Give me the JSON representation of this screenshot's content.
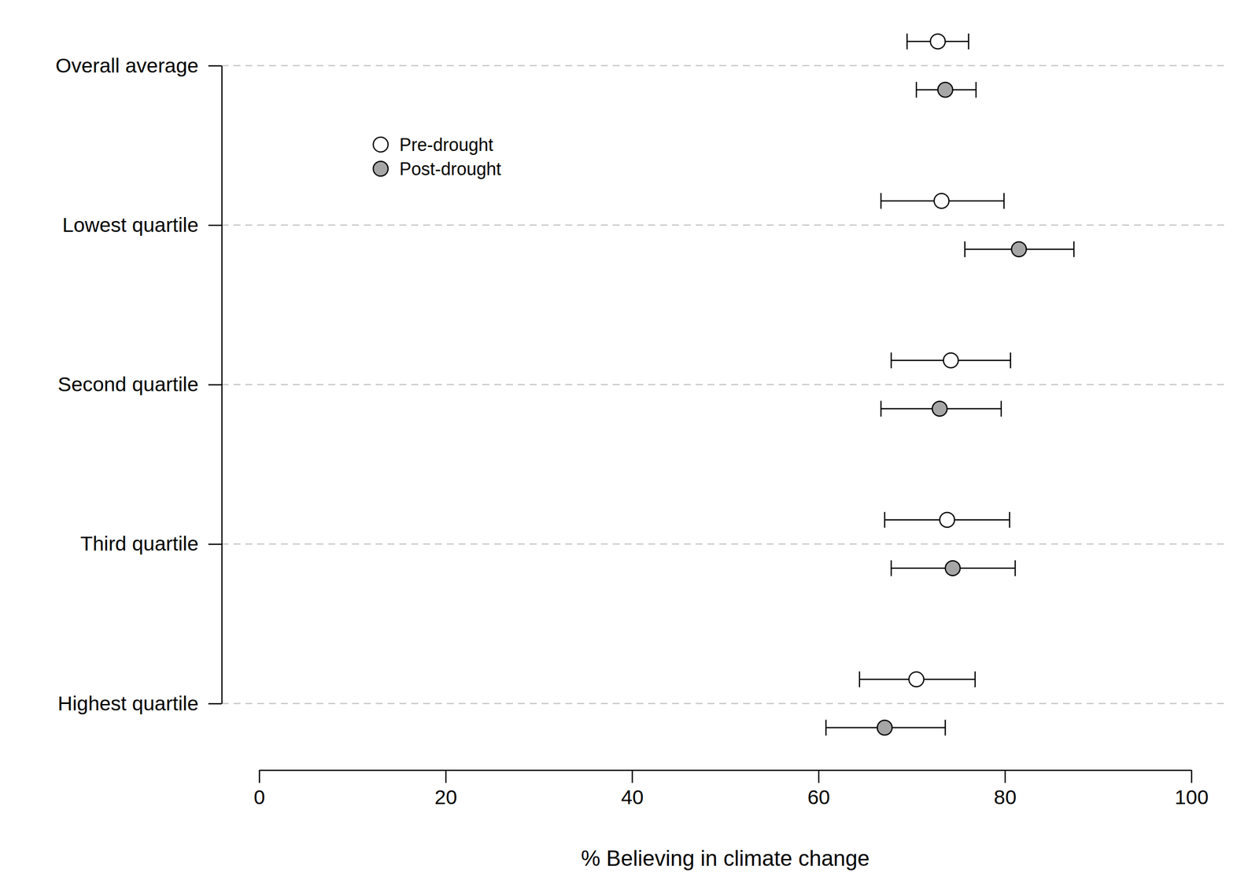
{
  "chart_data": {
    "type": "dot",
    "orientation": "horizontal",
    "xlabel": "% Believing in climate change",
    "categories": [
      "Overall average",
      "Lowest quartile",
      "Second quartile",
      "Third quartile",
      "Highest quartile"
    ],
    "series": [
      {
        "name": "Pre-drought",
        "color": "#ffffff",
        "marker": "circle",
        "values": [
          72.8,
          73.2,
          74.2,
          73.8,
          70.5
        ],
        "ci_low": [
          69.5,
          66.7,
          67.8,
          67.1,
          64.4
        ],
        "ci_high": [
          76.1,
          79.9,
          80.6,
          80.5,
          76.8
        ]
      },
      {
        "name": "Post-drought",
        "color": "#a6a6a6",
        "marker": "circle",
        "values": [
          73.6,
          81.5,
          73.0,
          74.4,
          67.1
        ],
        "ci_low": [
          70.5,
          75.7,
          66.7,
          67.8,
          60.8
        ],
        "ci_high": [
          76.9,
          87.4,
          79.6,
          81.1,
          73.6
        ]
      }
    ],
    "xlim": [
      0,
      100
    ],
    "xticks": [
      0,
      20,
      40,
      60,
      80,
      100
    ],
    "grid": true,
    "legend": "top-left"
  }
}
